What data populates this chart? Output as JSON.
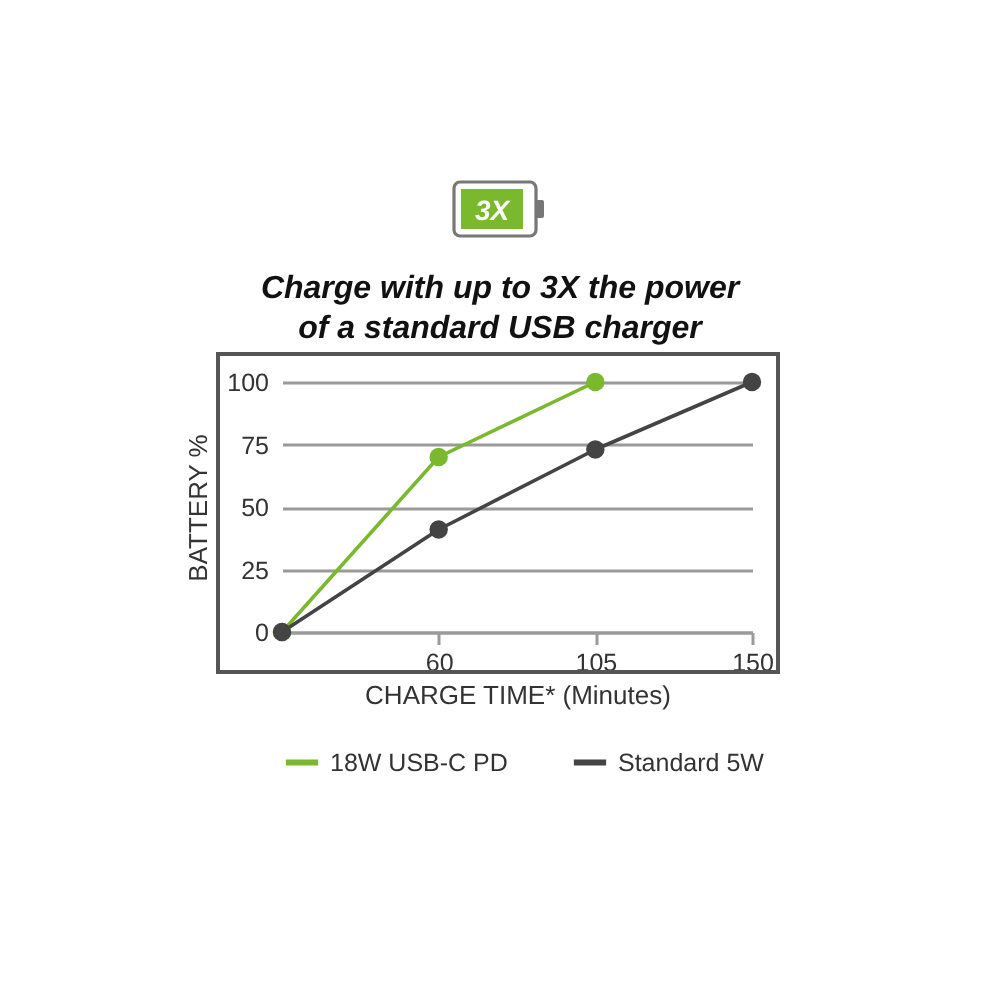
{
  "chart_data": {
    "type": "line",
    "title": "Charge with up to 3X the power of a standard USB charger",
    "annotations": [
      "3X"
    ],
    "xlabel": "CHARGE TIME* (Minutes)",
    "ylabel": "BATTERY %",
    "categories": [
      null,
      "60",
      "105",
      "150"
    ],
    "series": [
      {
        "name": "18W USB-C PD",
        "color": "#7ab82e",
        "values": [
          0,
          70,
          100,
          null
        ]
      },
      {
        "name": "Standard 5W",
        "color": "#444444",
        "values": [
          0,
          41,
          73,
          100
        ]
      }
    ],
    "ylim": [
      0,
      100
    ],
    "yticks": [
      0,
      25,
      50,
      75,
      100
    ],
    "grid": "y",
    "legend": "bottom",
    "marker": "circle"
  }
}
